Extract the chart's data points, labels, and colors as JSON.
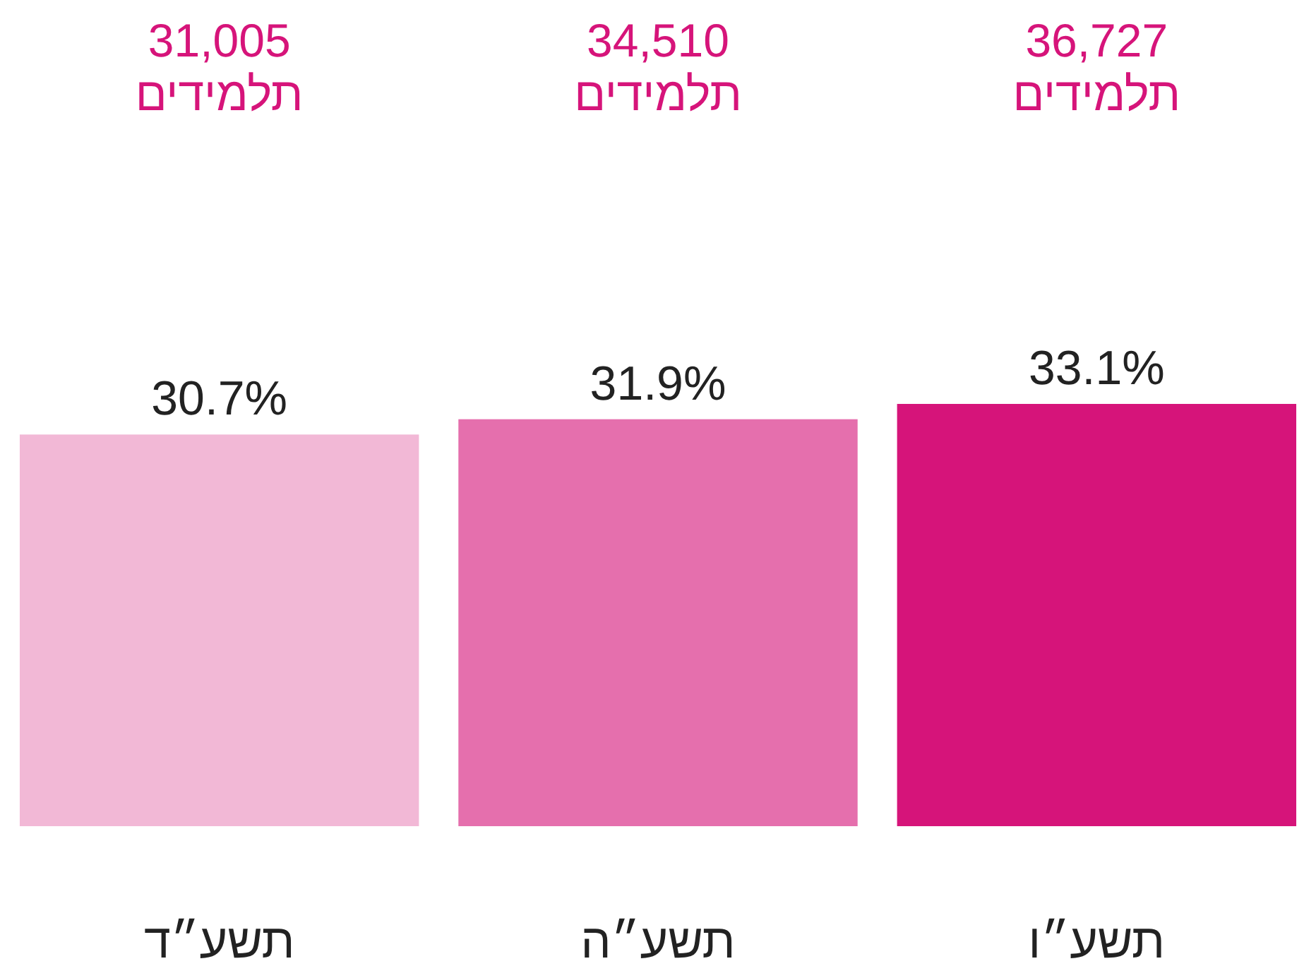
{
  "chart_data": {
    "type": "bar",
    "categories": [
      "תשע״ד",
      "תשע״ה",
      "תשע״ו"
    ],
    "values": [
      30.7,
      31.9,
      33.1
    ],
    "colors": [
      "#f2b8d6",
      "#e56fad",
      "#d6147a"
    ],
    "data_labels": true,
    "value_labels": [
      "30.7%",
      "31.9%",
      "33.1%"
    ],
    "annotations": [
      "31,005 תלמידים",
      "34,510 תלמידים",
      "36,727 תלמידים"
    ]
  }
}
